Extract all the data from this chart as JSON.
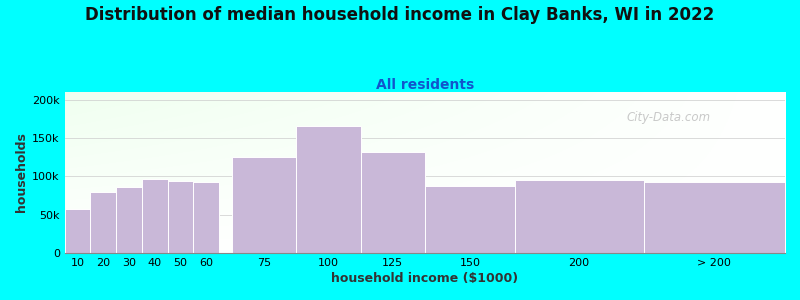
{
  "title": "Distribution of median household income in Clay Banks, WI in 2022",
  "subtitle": "All residents",
  "xlabel": "household income ($1000)",
  "ylabel": "households",
  "background_color": "#00FFFF",
  "bar_color": "#C9B8D8",
  "bar_edge_color": "#FFFFFF",
  "categories": [
    "10",
    "20",
    "30",
    "40",
    "50",
    "60",
    "75",
    "100",
    "125",
    "150",
    "200",
    "> 200"
  ],
  "bar_positions": [
    0,
    10,
    20,
    30,
    40,
    50,
    65,
    90,
    115,
    140,
    175,
    225
  ],
  "bar_widths": [
    10,
    10,
    10,
    10,
    10,
    10,
    25,
    25,
    25,
    35,
    50,
    55
  ],
  "values": [
    58000,
    79000,
    86000,
    97000,
    94000,
    93000,
    125000,
    165000,
    132000,
    87000,
    95000,
    92000
  ],
  "ylim": [
    0,
    210000
  ],
  "yticks": [
    0,
    50000,
    100000,
    150000,
    200000
  ],
  "ytick_labels": [
    "0",
    "50k",
    "100k",
    "150k",
    "200k"
  ],
  "watermark": "City-Data.com",
  "title_fontsize": 12,
  "subtitle_fontsize": 10,
  "axis_label_fontsize": 9,
  "tick_fontsize": 8,
  "subtitle_color": "#1155CC",
  "title_color": "#111111",
  "xlabel_color": "#333333",
  "ylabel_color": "#333333"
}
